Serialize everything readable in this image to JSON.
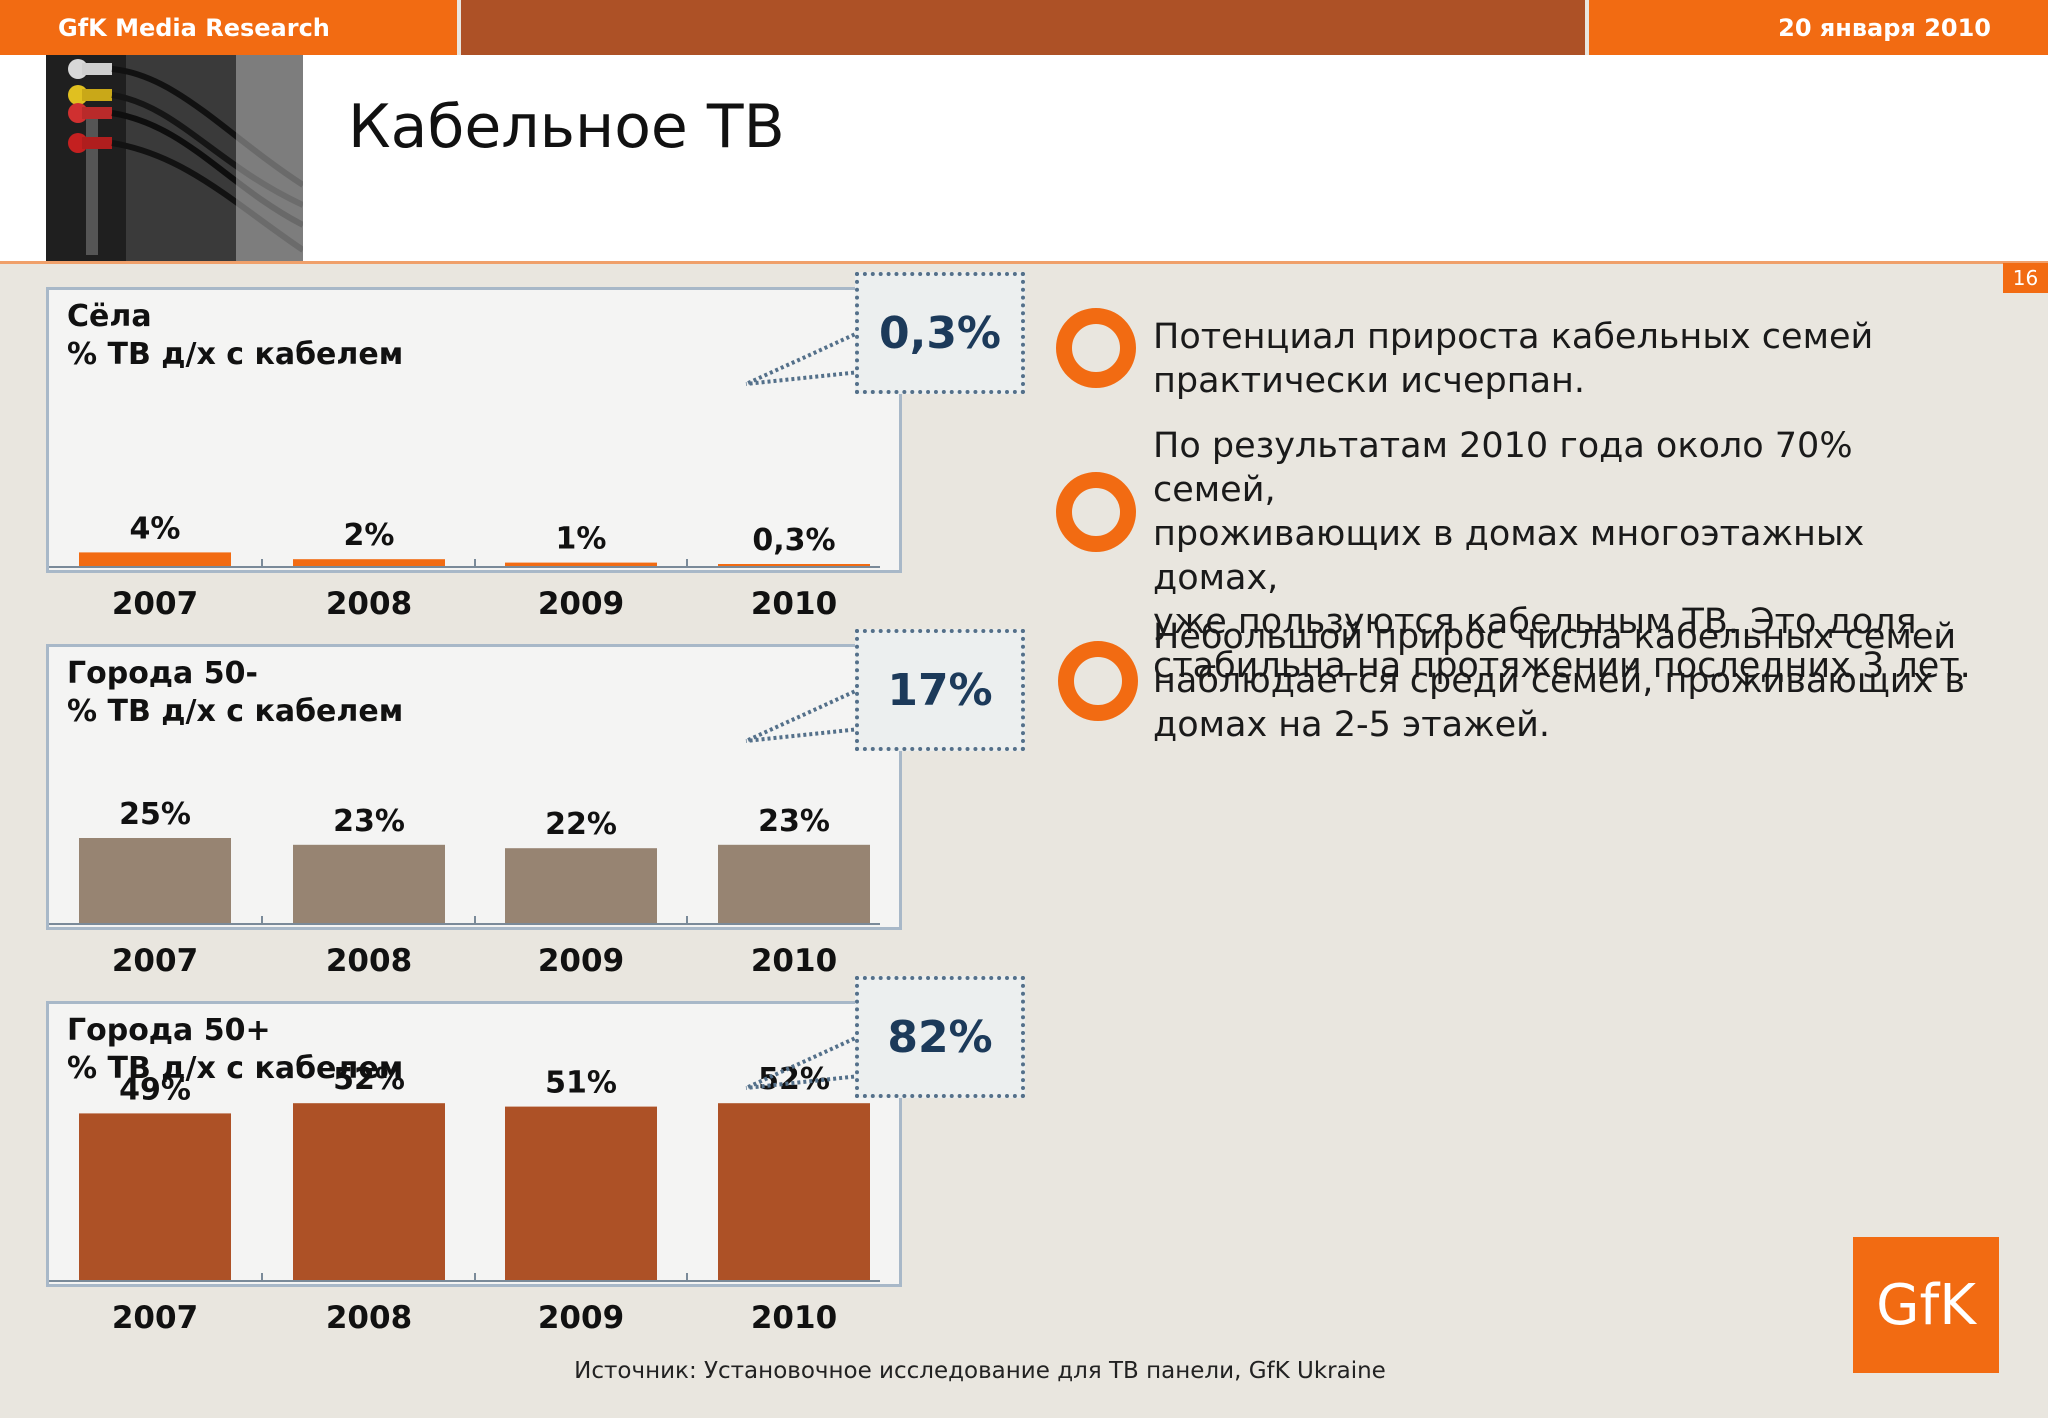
{
  "header": {
    "left_label": "GfK Media Research",
    "date": "20 января 2010",
    "title": "Кабельное ТВ",
    "page_number": "16"
  },
  "chart_data": [
    {
      "type": "bar",
      "title": "Сёла\n% ТВ д/х с кабелем",
      "categories": [
        "2007",
        "2008",
        "2009",
        "2010"
      ],
      "values": [
        4,
        2,
        1,
        0.3
      ],
      "value_labels": [
        "4%",
        "2%",
        "1%",
        "0,3%"
      ],
      "bar_color": "#f26b12",
      "callout": "0,3%",
      "ylim": [
        0,
        80
      ]
    },
    {
      "type": "bar",
      "title": "Города 50-\n% ТВ д/х с кабелем",
      "categories": [
        "2007",
        "2008",
        "2009",
        "2010"
      ],
      "values": [
        25,
        23,
        22,
        23
      ],
      "value_labels": [
        "25%",
        "23%",
        "22%",
        "23%"
      ],
      "bar_color": "#978472",
      "callout": "17%",
      "ylim": [
        0,
        80
      ]
    },
    {
      "type": "bar",
      "title": "Города 50+\n% ТВ д/х с кабелем",
      "categories": [
        "2007",
        "2008",
        "2009",
        "2010"
      ],
      "values": [
        49,
        52,
        51,
        52
      ],
      "value_labels": [
        "49%",
        "52%",
        "51%",
        "52%"
      ],
      "bar_color": "#ad5126",
      "callout": "82%",
      "ylim": [
        0,
        80
      ]
    }
  ],
  "bullets": [
    "Потенциал прироста кабельных семей\nпрактически исчерпан.",
    "По результатам 2010 года около 70% семей,\nпроживающих в домах многоэтажных домах,\nуже  пользуются кабельным ТВ. Это доля\nстабильна на протяжении последних 3 лет.",
    "Небольшой прирос числа кабельных семей\nнаблюдается среди семей, проживающих в\nдомах на 2-5 этажей."
  ],
  "source": "Источник: Установочное исследование для ТВ панели, GfK Ukraine",
  "logo_text": "GfK",
  "colors": {
    "accent": "#f26b12",
    "brown": "#ad5126",
    "taupe": "#978472",
    "callout_text": "#1c3a5a"
  }
}
